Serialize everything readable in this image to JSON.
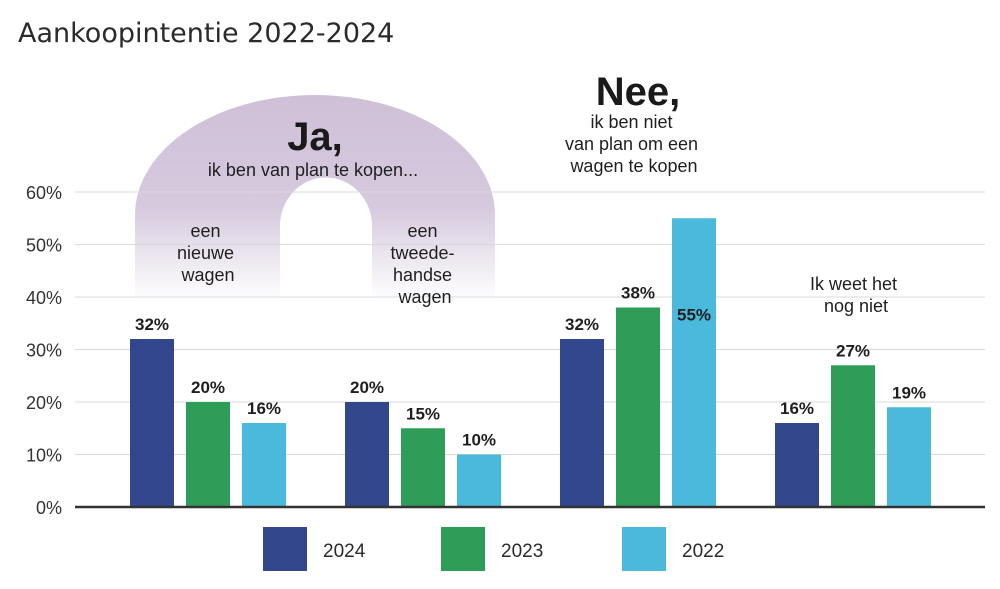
{
  "chart_data": {
    "type": "bar",
    "title": "Aankoopintentie 2022-2024",
    "categories": [
      "een nieuwe wagen",
      "een tweedehandse wagen",
      "Nee, ik ben niet van plan om een wagen te kopen",
      "Ik weet het nog niet"
    ],
    "series": [
      {
        "name": "2024",
        "color": "#33488c",
        "values": [
          32,
          20,
          32,
          16
        ],
        "labels": [
          "32%",
          "20%",
          "32%",
          "16%"
        ]
      },
      {
        "name": "2023",
        "color": "#2e9d57",
        "values": [
          20,
          15,
          38,
          27
        ],
        "labels": [
          "20%",
          "15%",
          "38%",
          "27%"
        ]
      },
      {
        "name": "2022",
        "color": "#4bb9dc",
        "values": [
          16,
          10,
          55,
          19
        ],
        "labels": [
          "16%",
          "10%",
          "55%",
          "19%"
        ]
      }
    ],
    "ylim": [
      0,
      60
    ],
    "yticks": [
      0,
      10,
      20,
      30,
      40,
      50,
      60
    ],
    "ytick_labels": [
      "0%",
      "10%",
      "20%",
      "30%",
      "40%",
      "50%",
      "60%"
    ],
    "xlabel": "",
    "ylabel": "",
    "legend_position": "bottom",
    "grid": true,
    "annotations": {
      "ja_title": "Ja,",
      "ja_subtitle": "ik ben van plan te kopen...",
      "arch_color": "#cfc0d8",
      "group1_lines": [
        "een",
        "nieuwe",
        "wagen"
      ],
      "group2_lines": [
        "een",
        "tweede-",
        "handse",
        "wagen"
      ],
      "nee_title": "Nee,",
      "nee_lines": [
        "ik ben niet",
        "van plan om een",
        "wagen te kopen"
      ],
      "unsure_lines": [
        "Ik weet het",
        "nog niet"
      ]
    }
  }
}
